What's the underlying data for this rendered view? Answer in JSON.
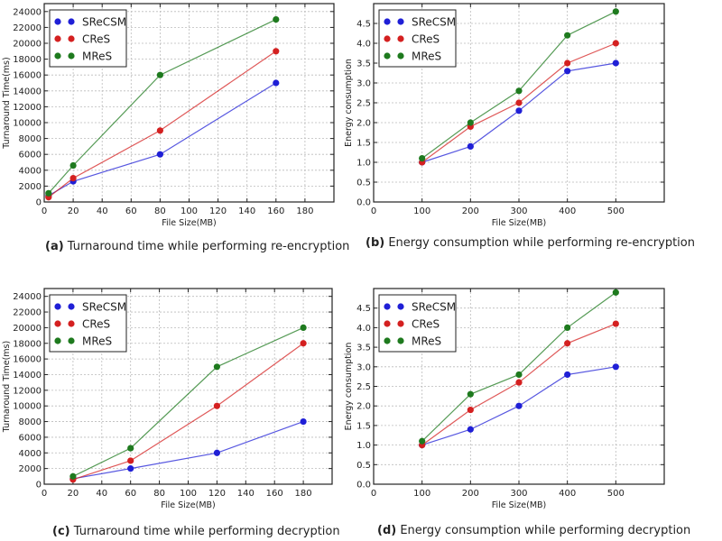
{
  "colors": {
    "SReCSM": "#1f1fd6",
    "CReS": "#d42020",
    "MReS": "#1e7a1e"
  },
  "chart_data": [
    {
      "id": "a",
      "type": "line",
      "caption_label": "(a)",
      "caption_text": "Turnaround time while performing re-encryption",
      "xlabel": "File Size(MB)",
      "ylabel": "Turnaround Time(ms)",
      "xlim": [
        0,
        200
      ],
      "ylim": [
        0,
        25000
      ],
      "xticks": [
        0,
        20,
        40,
        60,
        80,
        100,
        120,
        140,
        160,
        180
      ],
      "yticks": [
        0,
        2000,
        4000,
        6000,
        8000,
        10000,
        12000,
        14000,
        16000,
        18000,
        20000,
        22000,
        24000
      ],
      "grid": true,
      "legend": "top-left",
      "x": [
        3,
        20,
        80,
        160
      ],
      "series": [
        {
          "name": "SReCSM",
          "values": [
            800,
            2600,
            6000,
            15000
          ]
        },
        {
          "name": "CReS",
          "values": [
            600,
            3000,
            9000,
            19000
          ]
        },
        {
          "name": "MReS",
          "values": [
            1100,
            4600,
            16000,
            23000
          ]
        }
      ]
    },
    {
      "id": "b",
      "type": "line",
      "caption_label": "(b)",
      "caption_text": "Energy consumption while performing re-encryption",
      "xlabel": "File Size(MB)",
      "ylabel": "Energy consumption",
      "xlim": [
        0,
        600
      ],
      "ylim": [
        0,
        5.0
      ],
      "xticks": [
        0,
        100,
        200,
        300,
        400,
        500
      ],
      "yticks": [
        0.0,
        0.5,
        1.0,
        1.5,
        2.0,
        2.5,
        3.0,
        3.5,
        4.0,
        4.5
      ],
      "ytick_labels": [
        "0.0",
        "0.5",
        "1.0",
        "1.5",
        "2.0",
        "2.5",
        "3.0",
        "3.5",
        "4.0",
        "4.5"
      ],
      "grid": true,
      "legend": "top-left",
      "x": [
        100,
        200,
        300,
        400,
        500
      ],
      "series": [
        {
          "name": "SReCSM",
          "values": [
            1.0,
            1.4,
            2.3,
            3.3,
            3.5
          ]
        },
        {
          "name": "CReS",
          "values": [
            1.0,
            1.9,
            2.5,
            3.5,
            4.0
          ]
        },
        {
          "name": "MReS",
          "values": [
            1.1,
            2.0,
            2.8,
            4.2,
            4.8
          ]
        }
      ]
    },
    {
      "id": "c",
      "type": "line",
      "caption_label": "(c)",
      "caption_text": "Turnaround time while performing decryption",
      "xlabel": "File Size(MB)",
      "ylabel": "Turnaround Time(ms)",
      "xlim": [
        0,
        200
      ],
      "ylim": [
        0,
        25000
      ],
      "xticks": [
        0,
        20,
        40,
        60,
        80,
        100,
        120,
        140,
        160,
        180
      ],
      "yticks": [
        0,
        2000,
        4000,
        6000,
        8000,
        10000,
        12000,
        14000,
        16000,
        18000,
        20000,
        22000,
        24000
      ],
      "grid": true,
      "legend": "top-left",
      "x": [
        20,
        60,
        120,
        180
      ],
      "series": [
        {
          "name": "SReCSM",
          "values": [
            700,
            2000,
            4000,
            8000
          ]
        },
        {
          "name": "CReS",
          "values": [
            600,
            3000,
            10000,
            18000
          ]
        },
        {
          "name": "MReS",
          "values": [
            1000,
            4600,
            15000,
            20000
          ]
        }
      ]
    },
    {
      "id": "d",
      "type": "line",
      "caption_label": "(d)",
      "caption_text": "Energy consumption while performing decryption",
      "xlabel": "File Size(MB)",
      "ylabel": "Energy consumption",
      "xlim": [
        0,
        600
      ],
      "ylim": [
        0,
        5.0
      ],
      "xticks": [
        0,
        100,
        200,
        300,
        400,
        500
      ],
      "yticks": [
        0.0,
        0.5,
        1.0,
        1.5,
        2.0,
        2.5,
        3.0,
        3.5,
        4.0,
        4.5
      ],
      "ytick_labels": [
        "0.0",
        "0.5",
        "1.0",
        "1.5",
        "2.0",
        "2.5",
        "3.0",
        "3.5",
        "4.0",
        "4.5"
      ],
      "grid": true,
      "legend": "top-left",
      "x": [
        100,
        200,
        300,
        400,
        500
      ],
      "series": [
        {
          "name": "SReCSM",
          "values": [
            1.0,
            1.4,
            2.0,
            2.8,
            3.0
          ]
        },
        {
          "name": "CReS",
          "values": [
            1.0,
            1.9,
            2.6,
            3.6,
            4.1
          ]
        },
        {
          "name": "MReS",
          "values": [
            1.1,
            2.3,
            2.8,
            4.0,
            4.9
          ]
        }
      ]
    }
  ]
}
